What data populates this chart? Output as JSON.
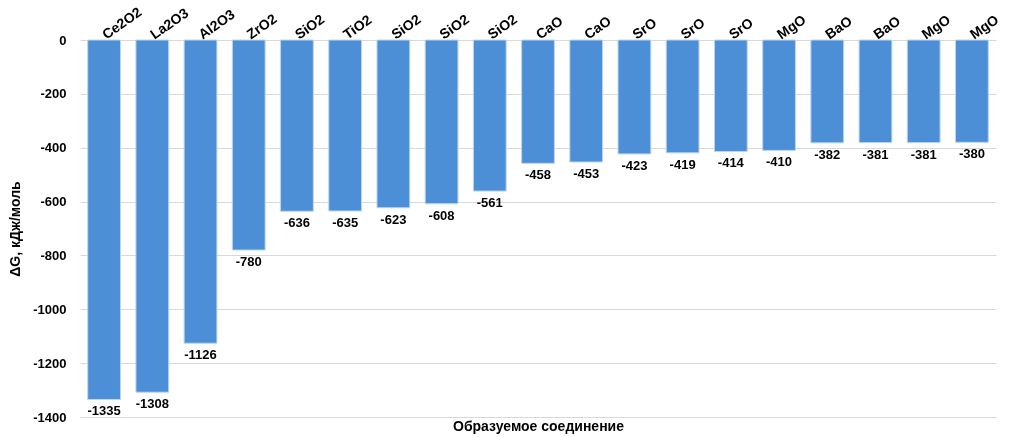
{
  "chart_data": {
    "type": "bar",
    "categories": [
      "Ce2O2",
      "La2O3",
      "Al2O3",
      "ZrO2",
      "SiO2",
      "TiO2",
      "SiO2",
      "SiO2",
      "SiO2",
      "CaO",
      "CaO",
      "SrO",
      "SrO",
      "SrO",
      "MgO",
      "BaO",
      "BaO",
      "MgO",
      "MgO"
    ],
    "values": [
      -1335,
      -1308,
      -1126,
      -780,
      -636,
      -635,
      -623,
      -608,
      -561,
      -458,
      -453,
      -423,
      -419,
      -414,
      -410,
      -382,
      -381,
      -381,
      -380
    ],
    "color": "#4d8fd6",
    "ylim": [
      -1400,
      0
    ],
    "yticks": [
      0,
      -200,
      -400,
      -600,
      -800,
      -1000,
      -1200,
      -1400
    ],
    "xlabel": "Образуемое соединение",
    "ylabel": "ΔG, кДж/моль",
    "grid": "y",
    "data_labels": true
  }
}
